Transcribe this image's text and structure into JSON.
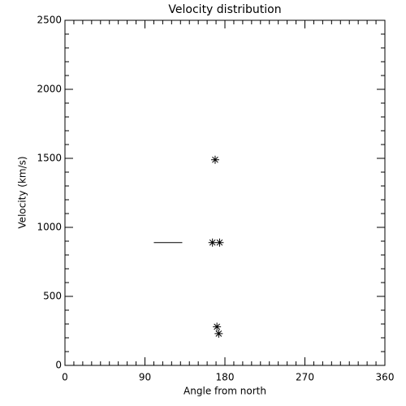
{
  "chart_data": {
    "type": "scatter",
    "title": "Velocity distribution",
    "xlabel": "Angle from north",
    "ylabel": "Velocity (km/s)",
    "xlim": [
      0,
      360
    ],
    "xticks": [
      0,
      90,
      180,
      270,
      360
    ],
    "xminor_step": 10,
    "ylim": [
      0,
      2500
    ],
    "yticks": [
      0,
      500,
      1000,
      1500,
      2000,
      2500
    ],
    "yminor_step": 100,
    "color": "#000000",
    "series": [
      {
        "marker": "asterisk",
        "x": [
          169,
          166,
          174,
          171,
          173
        ],
        "values": [
          1490,
          890,
          890,
          280,
          230
        ]
      },
      {
        "marker": "line",
        "x": [
          100,
          132
        ],
        "values": [
          890,
          890
        ]
      }
    ]
  }
}
